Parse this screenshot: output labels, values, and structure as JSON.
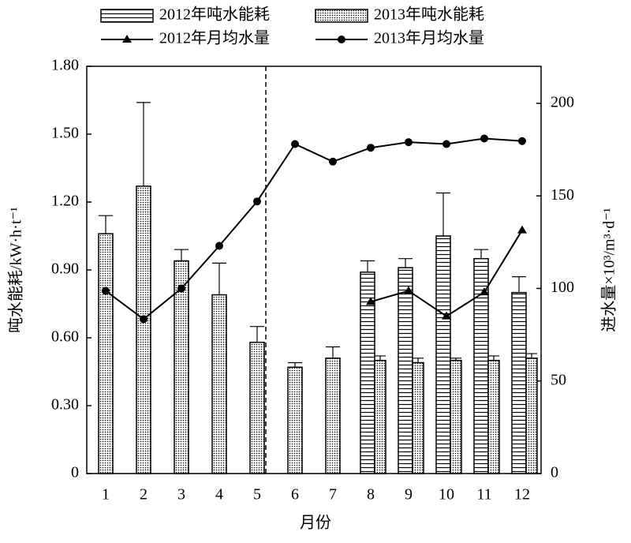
{
  "chart_data": {
    "type": "bar",
    "x_label": "月份",
    "y_label": "吨水能耗/kW·h·t⁻¹",
    "y2_label": "进水量×10³/m³·d⁻¹",
    "categories": [
      "1",
      "2",
      "3",
      "4",
      "5",
      "6",
      "7",
      "8",
      "9",
      "10",
      "11",
      "12"
    ],
    "ylim": [
      0,
      1.8
    ],
    "yticks": [
      0,
      {
        "value": 0.3,
        "label": "0.30"
      },
      {
        "value": 0.6,
        "label": "0.60"
      },
      {
        "value": 0.9,
        "label": "0.90"
      },
      {
        "value": 1.2,
        "label": "1.20"
      },
      {
        "value": 1.5,
        "label": "1.50"
      },
      {
        "value": 1.8,
        "label": "1.80"
      }
    ],
    "y2lim": [
      0,
      220
    ],
    "y2ticks": [
      0,
      50,
      100,
      150,
      200
    ],
    "series": [
      {
        "name": "2012年吨水能耗",
        "type": "bar",
        "pattern": "stripes",
        "color": "#000000",
        "values": [
          null,
          null,
          null,
          null,
          null,
          null,
          null,
          0.89,
          0.91,
          1.05,
          0.95,
          0.8
        ],
        "errors": [
          null,
          null,
          null,
          null,
          null,
          null,
          null,
          0.05,
          0.04,
          0.19,
          0.04,
          0.07
        ]
      },
      {
        "name": "2013年吨水能耗",
        "type": "bar",
        "pattern": "dots",
        "color": "#000000",
        "values": [
          1.06,
          1.27,
          0.94,
          0.79,
          0.58,
          0.47,
          0.51,
          0.5,
          0.49,
          0.5,
          0.5,
          0.51
        ],
        "errors": [
          0.08,
          0.37,
          0.05,
          0.14,
          0.07,
          0.02,
          0.05,
          0.02,
          0.02,
          0.01,
          0.02,
          0.02
        ]
      },
      {
        "name": "2012年月均水量",
        "type": "line",
        "marker": "triangle",
        "axis": "y2",
        "color": "#000000",
        "values": [
          null,
          null,
          null,
          null,
          null,
          null,
          null,
          92.8,
          98.7,
          85,
          98,
          131.5
        ]
      },
      {
        "name": "2013年月均水量",
        "type": "line",
        "marker": "circle",
        "axis": "y2",
        "color": "#000000",
        "values": [
          98.7,
          83.4,
          100,
          123,
          147,
          178,
          168.5,
          176,
          179,
          178,
          181,
          179.6
        ]
      }
    ]
  }
}
